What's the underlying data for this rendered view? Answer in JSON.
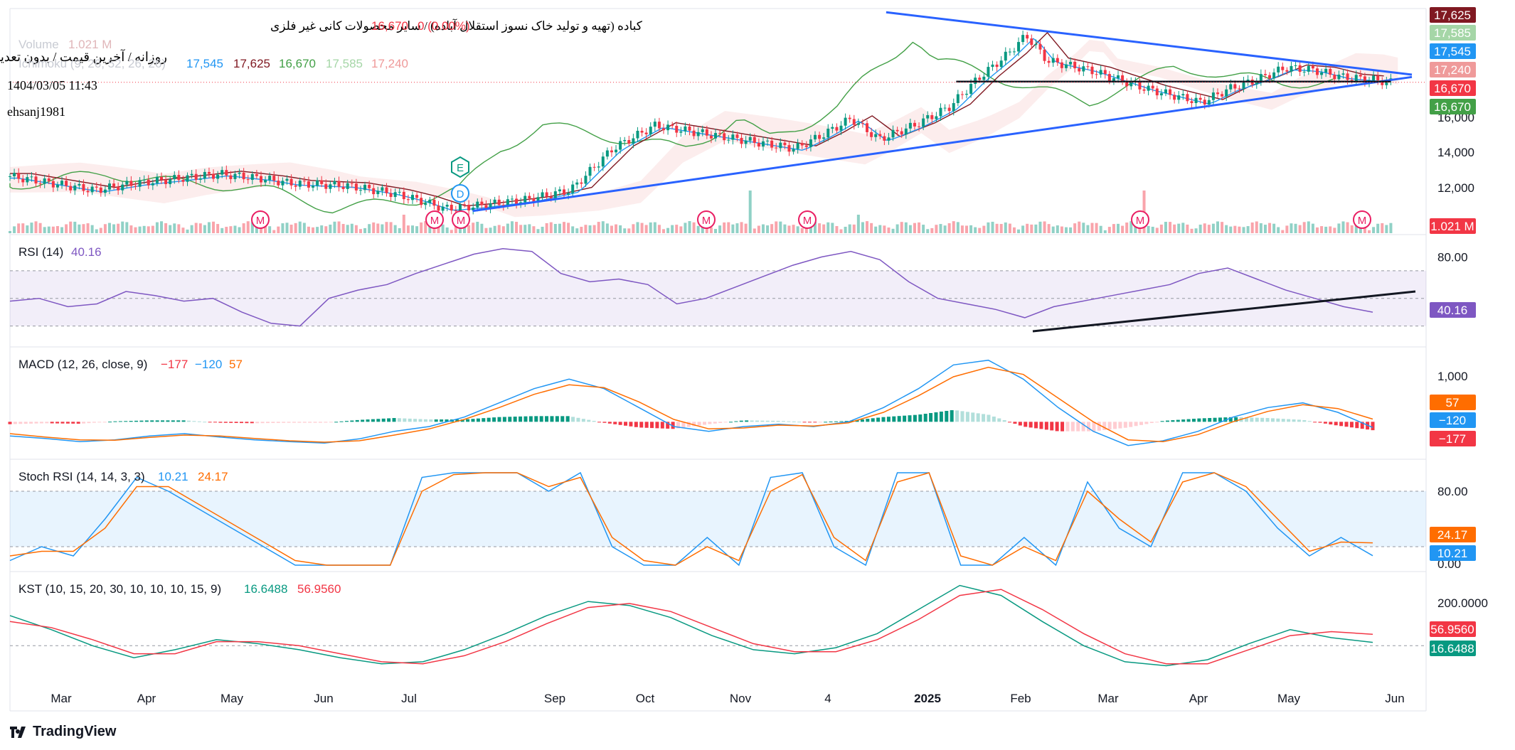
{
  "header": {
    "symbol_title": "کباده (تهیه و تولید خاک نسوز استقلال آباده) / سایر محصولات کانی غیر فلزی",
    "price": "16,670",
    "change": "0 (0.00%)",
    "volume_label": "Volume",
    "volume_value": "1.021 M",
    "ichimoku_label": "Ichimoku (9, 26, 52, 26, 26)",
    "ichimoku_values": [
      "17,545",
      "17,625",
      "16,670",
      "17,585",
      "17,240"
    ],
    "subtitle": "روزانه / آخرین قیمت / بدون تعدیل",
    "datetime": "1404/03/05 11:43",
    "author": "ehsanj1981"
  },
  "colors": {
    "up": "#089981",
    "down": "#f23645",
    "blue": "#2962ff",
    "tenkan": "#2196f3",
    "kijun": "#801922",
    "chikou": "#43a047",
    "rsi": "#7e57c2",
    "macd": "#2196f3",
    "signal": "#ff6d00",
    "kst": "#089981",
    "kst_signal": "#f23645",
    "m_badge": "#e91e63"
  },
  "x_axis": {
    "labels": [
      "Mar",
      "Apr",
      "May",
      "Jun",
      "Jul",
      "Sep",
      "Oct",
      "Nov",
      "4",
      "2025",
      "Feb",
      "Mar",
      "Apr",
      "May",
      "Jun"
    ]
  },
  "price_axis": {
    "labels": [
      "16,000",
      "14,000",
      "12,000"
    ],
    "badges": [
      "17,625",
      "17,585",
      "17,545",
      "17,240",
      "16,670",
      "16,670",
      "1.021 M"
    ]
  },
  "event_markers": [
    "E",
    "D",
    "M",
    "M",
    "M",
    "M",
    "M",
    "M",
    "M"
  ],
  "rsi": {
    "label": "RSI (14)",
    "value": "40.16",
    "axis": [
      "80.00"
    ],
    "badge": "40.16"
  },
  "macd": {
    "label": "MACD (12, 26, close, 9)",
    "values": [
      "−177",
      "−120",
      "57"
    ],
    "axis": [
      "1,000"
    ],
    "badges": [
      "57",
      "−120",
      "−177"
    ]
  },
  "stoch": {
    "label": "Stoch RSI (14, 14, 3, 3)",
    "values": [
      "10.21",
      "24.17"
    ],
    "axis": [
      "80.00",
      "0.00"
    ],
    "badges": [
      "24.17",
      "10.21"
    ]
  },
  "kst": {
    "label": "KST (10, 15, 20, 30, 10, 10, 10, 15, 9)",
    "values": [
      "16.6488",
      "56.9560"
    ],
    "axis": [
      "200.0000"
    ],
    "badges": [
      "56.9560",
      "16.6488"
    ]
  },
  "brand": "TradingView",
  "chart_data": [
    {
      "type": "line",
      "title": "کباده (تهیه و تولید خاک نسوز استقلال آباده) / سایر محصولات کانی غیر فلزی",
      "series": [
        {
          "name": "Close",
          "points": [
            [
              0,
              12600
            ],
            [
              0.03,
              12300
            ],
            [
              0.06,
              12000
            ],
            [
              0.09,
              12300
            ],
            [
              0.12,
              12500
            ],
            [
              0.15,
              12700
            ],
            [
              0.18,
              12500
            ],
            [
              0.2,
              12300
            ],
            [
              0.24,
              12200
            ],
            [
              0.27,
              11900
            ],
            [
              0.29,
              11600
            ],
            [
              0.31,
              11200
            ],
            [
              0.33,
              11300
            ],
            [
              0.37,
              11600
            ],
            [
              0.4,
              12000
            ],
            [
              0.43,
              13800
            ],
            [
              0.46,
              14800
            ],
            [
              0.49,
              14500
            ],
            [
              0.52,
              14200
            ],
            [
              0.54,
              14000
            ],
            [
              0.56,
              13800
            ],
            [
              0.58,
              14400
            ],
            [
              0.6,
              15100
            ],
            [
              0.62,
              14200
            ],
            [
              0.645,
              14800
            ],
            [
              0.67,
              15600
            ],
            [
              0.69,
              16800
            ],
            [
              0.71,
              17800
            ],
            [
              0.725,
              18700
            ],
            [
              0.74,
              17600
            ],
            [
              0.77,
              17200
            ],
            [
              0.79,
              16800
            ],
            [
              0.81,
              16400
            ],
            [
              0.83,
              16100
            ],
            [
              0.85,
              15800
            ],
            [
              0.87,
              16400
            ],
            [
              0.89,
              16800
            ],
            [
              0.91,
              17300
            ],
            [
              0.93,
              17200
            ],
            [
              0.95,
              16900
            ],
            [
              0.97,
              16800
            ],
            [
              0.985,
              16670
            ]
          ]
        },
        {
          "name": "Upper trendline",
          "points": [
            [
              0.625,
              19700
            ],
            [
              1.0,
              17000
            ]
          ]
        },
        {
          "name": "Lower trendline",
          "points": [
            [
              0.33,
              11100
            ],
            [
              1.0,
              16900
            ]
          ]
        },
        {
          "name": "Horizontal level",
          "points": [
            [
              0.675,
              16700
            ],
            [
              0.985,
              16700
            ]
          ]
        }
      ],
      "ylim": [
        11000,
        19800
      ],
      "volume": "1.021 M"
    },
    {
      "type": "line",
      "title": "RSI (14)",
      "series": [
        {
          "name": "",
          "values": [
            48,
            50,
            44,
            46,
            55,
            52,
            48,
            50,
            40,
            32,
            30,
            50,
            56,
            60,
            68,
            75,
            82,
            86,
            84,
            68,
            62,
            64,
            60,
            46,
            50,
            58,
            66,
            74,
            80,
            84,
            78,
            62,
            50,
            46,
            42,
            36,
            44,
            48,
            52,
            56,
            60,
            68,
            72,
            64,
            56,
            50,
            44,
            40
          ]
        }
      ],
      "ylim": [
        20,
        90
      ],
      "bands": [
        30,
        70
      ]
    },
    {
      "type": "line",
      "title": "MACD (12, 26, close, 9)",
      "series": [
        {
          "name": "MACD",
          "values": [
            -300,
            -350,
            -420,
            -380,
            -300,
            -250,
            -320,
            -380,
            -420,
            -450,
            -360,
            -200,
            -100,
            100,
            400,
            700,
            900,
            700,
            300,
            -100,
            -200,
            -100,
            -50,
            -100,
            0,
            300,
            700,
            1200,
            1300,
            900,
            300,
            -200,
            -500,
            -400,
            -200,
            100,
            300,
            400,
            200,
            -120
          ]
        },
        {
          "name": "Signal",
          "values": [
            -250,
            -320,
            -380,
            -390,
            -330,
            -280,
            -300,
            -350,
            -400,
            -430,
            -400,
            -280,
            -150,
            50,
            300,
            580,
            780,
            720,
            420,
            50,
            -150,
            -130,
            -70,
            -90,
            -20,
            200,
            550,
            950,
            1150,
            1000,
            500,
            0,
            -380,
            -420,
            -270,
            0,
            220,
            360,
            280,
            57
          ]
        }
      ],
      "ylim": [
        -700,
        1400
      ]
    },
    {
      "type": "line",
      "title": "Stoch RSI (14, 14, 3, 3)",
      "series": [
        {
          "name": "K",
          "values": [
            5,
            20,
            10,
            50,
            95,
            80,
            60,
            40,
            20,
            0,
            0,
            0,
            0,
            95,
            100,
            100,
            100,
            80,
            100,
            20,
            0,
            0,
            30,
            0,
            95,
            100,
            20,
            0,
            100,
            100,
            0,
            0,
            30,
            0,
            90,
            40,
            20,
            100,
            100,
            80,
            40,
            10,
            30,
            10.21
          ]
        },
        {
          "name": "D",
          "values": [
            10,
            15,
            15,
            40,
            85,
            85,
            65,
            45,
            25,
            5,
            0,
            0,
            0,
            80,
            98,
            100,
            100,
            85,
            95,
            30,
            5,
            0,
            20,
            5,
            80,
            98,
            30,
            5,
            90,
            100,
            10,
            0,
            20,
            5,
            80,
            50,
            25,
            90,
            100,
            85,
            50,
            15,
            25,
            24.17
          ]
        }
      ],
      "ylim": [
        0,
        100
      ],
      "bands": [
        20,
        80
      ]
    },
    {
      "type": "line",
      "title": "KST (10, 15, 20, 30, 10, 10, 10, 15, 9)",
      "series": [
        {
          "name": "KST",
          "values": [
            150,
            80,
            0,
            -60,
            -20,
            30,
            10,
            -20,
            -60,
            -90,
            -80,
            -20,
            60,
            150,
            220,
            200,
            140,
            50,
            -20,
            -40,
            -10,
            60,
            180,
            300,
            250,
            120,
            0,
            -80,
            -100,
            -70,
            10,
            80,
            40,
            16.65
          ]
        },
        {
          "name": "Signal",
          "values": [
            120,
            90,
            30,
            -40,
            -40,
            20,
            20,
            0,
            -40,
            -80,
            -90,
            -50,
            20,
            110,
            190,
            210,
            170,
            90,
            10,
            -30,
            -30,
            30,
            130,
            250,
            280,
            180,
            60,
            -40,
            -90,
            -90,
            -20,
            50,
            70,
            56.96
          ]
        }
      ],
      "ylim": [
        -130,
        330
      ]
    }
  ]
}
